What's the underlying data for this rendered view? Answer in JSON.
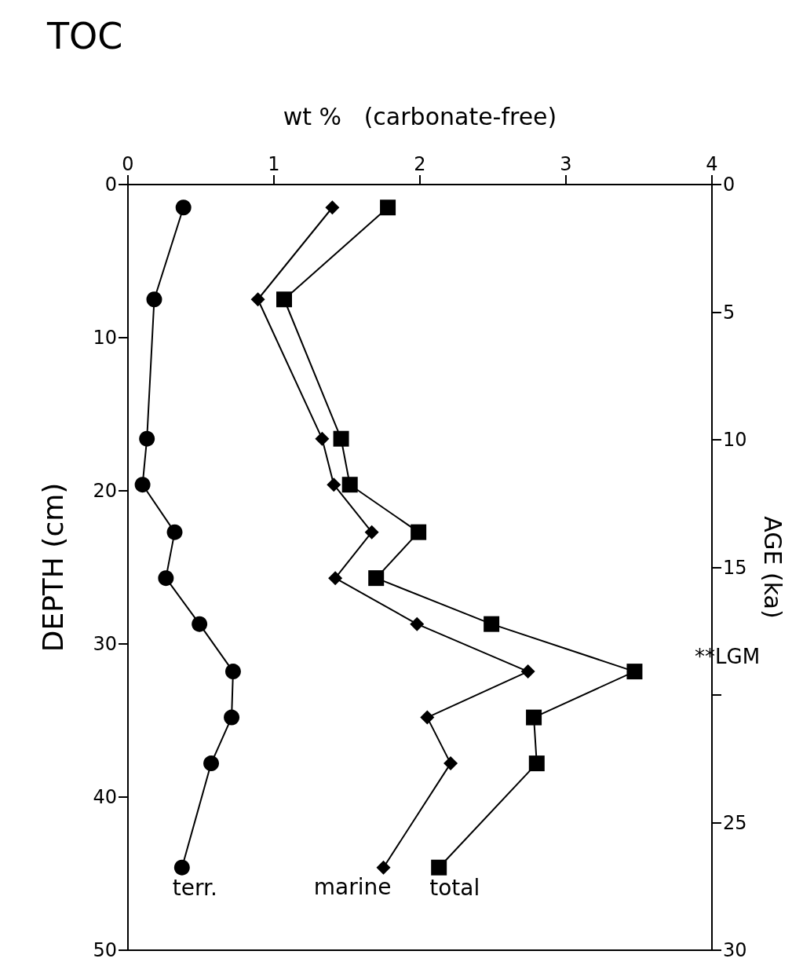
{
  "chart_data": {
    "type": "line",
    "title": "TOC",
    "xlabel": "wt %   (carbonate-free)",
    "ylabel": "DEPTH (cm)",
    "y2label": "AGE (ka)",
    "xlim": [
      0,
      4
    ],
    "xticks": [
      0,
      1,
      2,
      3,
      4
    ],
    "ylim": [
      50,
      0
    ],
    "yticks": [
      0,
      10,
      20,
      30,
      40,
      50
    ],
    "y2lim": [
      30,
      0
    ],
    "y2ticks": [
      0,
      5,
      10,
      15,
      {
        "value": 20,
        "label": null
      },
      25,
      30
    ],
    "grid": false,
    "legend": false,
    "line_style": "solid",
    "annotations": [
      "**LGM"
    ],
    "series": [
      {
        "name": "terr.",
        "color": "#000000",
        "marker": "circle",
        "x": [
          0.38,
          0.18,
          0.13,
          0.1,
          0.32,
          0.26,
          0.49,
          0.72,
          0.71,
          0.57,
          0.37
        ],
        "values": [
          1.5,
          7.5,
          16.6,
          19.6,
          22.7,
          25.7,
          28.7,
          31.8,
          34.8,
          37.8,
          44.6
        ]
      },
      {
        "name": "marine",
        "color": "#000000",
        "marker": "diamond",
        "x": [
          1.4,
          0.89,
          1.33,
          1.41,
          1.67,
          1.42,
          1.98,
          2.74,
          2.05,
          2.21,
          1.75
        ],
        "values": [
          1.5,
          7.5,
          16.6,
          19.6,
          22.7,
          25.7,
          28.7,
          31.8,
          34.8,
          37.8,
          44.6
        ]
      },
      {
        "name": "total",
        "color": "#000000",
        "marker": "square",
        "x": [
          1.78,
          1.07,
          1.46,
          1.52,
          1.99,
          1.7,
          2.49,
          3.47,
          2.78,
          2.8,
          2.13
        ],
        "values": [
          1.5,
          7.5,
          16.6,
          19.6,
          22.7,
          25.7,
          28.7,
          31.8,
          34.8,
          37.8,
          44.6
        ]
      }
    ]
  }
}
